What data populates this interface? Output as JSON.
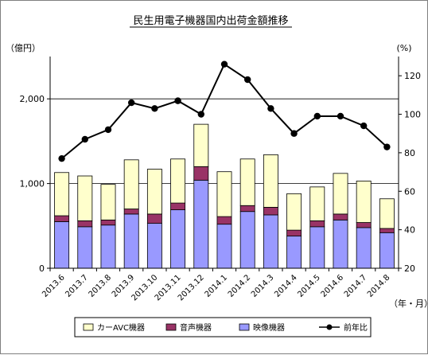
{
  "chart_data": {
    "type": "bar",
    "title": "民生用電子機器国内出荷金額推移",
    "y_left_label": "（億円）",
    "y_right_label": "(%)",
    "x_unit_label": "（年・月）",
    "y_left_range": [
      0,
      2500
    ],
    "y_left_ticks": [
      "0",
      "1,000",
      "2,000"
    ],
    "y_left_tick_values": [
      0,
      1000,
      2000
    ],
    "y_right_range": [
      20,
      130
    ],
    "y_right_ticks": [
      "20",
      "40",
      "60",
      "80",
      "100",
      "120"
    ],
    "y_right_tick_values": [
      20,
      40,
      60,
      80,
      100,
      120
    ],
    "categories": [
      "2013.6",
      "2013.7",
      "2013.8",
      "2013.9",
      "2013.10",
      "2013.11",
      "2013.12",
      "2014.1",
      "2014.2",
      "2014.3",
      "2014.4",
      "2014.5",
      "2014.6",
      "2014.7",
      "2014.8"
    ],
    "series": [
      {
        "name": "映像機器",
        "kind": "bar",
        "axis": "left",
        "color": "#9999ff",
        "values": [
          550,
          490,
          510,
          640,
          530,
          690,
          1040,
          520,
          670,
          630,
          380,
          490,
          570,
          480,
          420
        ]
      },
      {
        "name": "音声機器",
        "kind": "bar",
        "axis": "left",
        "color": "#993366",
        "values": [
          70,
          70,
          60,
          60,
          110,
          80,
          160,
          90,
          70,
          90,
          70,
          70,
          70,
          60,
          50
        ]
      },
      {
        "name": "カーAVC機器",
        "kind": "bar",
        "axis": "left",
        "color": "#ffffcc",
        "values": [
          510,
          530,
          420,
          580,
          530,
          520,
          500,
          530,
          550,
          620,
          430,
          400,
          480,
          490,
          350
        ]
      },
      {
        "name": "前年比",
        "kind": "line",
        "axis": "right",
        "color": "#000000",
        "values": [
          77,
          87,
          92,
          106,
          103,
          107,
          100,
          126,
          118,
          103,
          90,
          99,
          99,
          94,
          83
        ]
      }
    ],
    "legend": {
      "placement": "bottom",
      "order": [
        "カーAVC機器",
        "音声機器",
        "映像機器",
        "前年比"
      ]
    },
    "grid": true
  }
}
